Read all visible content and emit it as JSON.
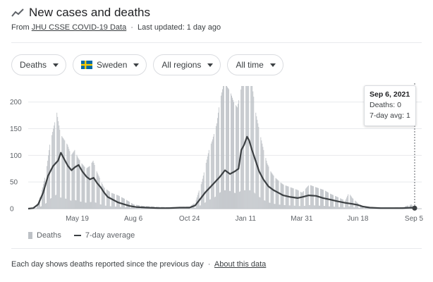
{
  "header": {
    "title": "New cases and deaths",
    "source_prefix": "From",
    "source_link": "JHU CSSE COVID-19 Data",
    "separator": "·",
    "updated": "Last updated: 1 day ago",
    "icon": "trending-icon"
  },
  "controls": {
    "metric": "Deaths",
    "country": "Sweden",
    "regions": "All regions",
    "time": "All time",
    "flag_colors": {
      "blue": "#006AA7",
      "yellow": "#FECC00"
    }
  },
  "chart_data": {
    "type": "bar",
    "x_start": "2020-03-11",
    "x_end": "2021-09-06",
    "ylim": [
      0,
      230
    ],
    "yticks": [
      0,
      50,
      100,
      150,
      200
    ],
    "xtick_labels": [
      "May 19",
      "Aug 6",
      "Oct 24",
      "Jan 11",
      "Mar 31",
      "Jun 18",
      "Sep 5"
    ],
    "xtick_dates": [
      "2020-05-19",
      "2020-08-06",
      "2020-10-24",
      "2021-01-11",
      "2021-03-31",
      "2021-06-18",
      "2021-09-05"
    ],
    "series": [
      {
        "name": "Deaths",
        "kind": "bar",
        "color": "#bdc1c6",
        "points": [
          [
            "2020-03-11",
            0
          ],
          [
            "2020-03-15",
            1
          ],
          [
            "2020-03-20",
            3
          ],
          [
            "2020-03-25",
            12
          ],
          [
            "2020-03-31",
            40
          ],
          [
            "2020-04-05",
            70
          ],
          [
            "2020-04-10",
            120
          ],
          [
            "2020-04-15",
            150
          ],
          [
            "2020-04-20",
            180
          ],
          [
            "2020-04-25",
            140
          ],
          [
            "2020-04-30",
            130
          ],
          [
            "2020-05-05",
            120
          ],
          [
            "2020-05-10",
            100
          ],
          [
            "2020-05-15",
            110
          ],
          [
            "2020-05-20",
            95
          ],
          [
            "2020-05-25",
            85
          ],
          [
            "2020-05-31",
            75
          ],
          [
            "2020-06-05",
            80
          ],
          [
            "2020-06-10",
            90
          ],
          [
            "2020-06-15",
            70
          ],
          [
            "2020-06-20",
            55
          ],
          [
            "2020-06-25",
            40
          ],
          [
            "2020-06-30",
            35
          ],
          [
            "2020-07-05",
            30
          ],
          [
            "2020-07-15",
            25
          ],
          [
            "2020-07-25",
            18
          ],
          [
            "2020-08-06",
            8
          ],
          [
            "2020-08-20",
            5
          ],
          [
            "2020-09-05",
            4
          ],
          [
            "2020-09-20",
            3
          ],
          [
            "2020-10-05",
            3
          ],
          [
            "2020-10-24",
            4
          ],
          [
            "2020-11-01",
            12
          ],
          [
            "2020-11-05",
            30
          ],
          [
            "2020-11-10",
            50
          ],
          [
            "2020-11-15",
            80
          ],
          [
            "2020-11-20",
            110
          ],
          [
            "2020-11-25",
            130
          ],
          [
            "2020-12-01",
            160
          ],
          [
            "2020-12-05",
            200
          ],
          [
            "2020-12-10",
            230
          ],
          [
            "2020-12-15",
            230
          ],
          [
            "2020-12-20",
            220
          ],
          [
            "2020-12-25",
            200
          ],
          [
            "2020-12-30",
            190
          ],
          [
            "2021-01-05",
            230
          ],
          [
            "2021-01-11",
            230
          ],
          [
            "2021-01-15",
            230
          ],
          [
            "2021-01-20",
            230
          ],
          [
            "2021-01-25",
            180
          ],
          [
            "2021-01-31",
            140
          ],
          [
            "2021-02-05",
            110
          ],
          [
            "2021-02-10",
            85
          ],
          [
            "2021-02-15",
            70
          ],
          [
            "2021-02-20",
            60
          ],
          [
            "2021-02-28",
            50
          ],
          [
            "2021-03-05",
            45
          ],
          [
            "2021-03-15",
            40
          ],
          [
            "2021-03-25",
            35
          ],
          [
            "2021-03-31",
            30
          ],
          [
            "2021-04-10",
            45
          ],
          [
            "2021-04-20",
            40
          ],
          [
            "2021-05-01",
            35
          ],
          [
            "2021-05-10",
            28
          ],
          [
            "2021-05-20",
            22
          ],
          [
            "2021-05-31",
            15
          ],
          [
            "2021-06-05",
            30
          ],
          [
            "2021-06-10",
            20
          ],
          [
            "2021-06-18",
            10
          ],
          [
            "2021-06-25",
            5
          ],
          [
            "2021-07-05",
            3
          ],
          [
            "2021-07-20",
            2
          ],
          [
            "2021-08-05",
            2
          ],
          [
            "2021-08-20",
            3
          ],
          [
            "2021-09-01",
            8
          ],
          [
            "2021-09-06",
            0
          ]
        ]
      },
      {
        "name": "7-day average",
        "kind": "line",
        "color": "#3c4043",
        "points": [
          [
            "2020-03-11",
            0
          ],
          [
            "2020-03-18",
            1
          ],
          [
            "2020-03-25",
            8
          ],
          [
            "2020-04-01",
            30
          ],
          [
            "2020-04-08",
            62
          ],
          [
            "2020-04-15",
            80
          ],
          [
            "2020-04-22",
            90
          ],
          [
            "2020-04-26",
            105
          ],
          [
            "2020-05-01",
            92
          ],
          [
            "2020-05-06",
            80
          ],
          [
            "2020-05-11",
            72
          ],
          [
            "2020-05-16",
            78
          ],
          [
            "2020-05-21",
            82
          ],
          [
            "2020-05-26",
            70
          ],
          [
            "2020-06-01",
            60
          ],
          [
            "2020-06-06",
            55
          ],
          [
            "2020-06-11",
            58
          ],
          [
            "2020-06-16",
            48
          ],
          [
            "2020-06-21",
            40
          ],
          [
            "2020-06-26",
            30
          ],
          [
            "2020-07-01",
            22
          ],
          [
            "2020-07-08",
            17
          ],
          [
            "2020-07-15",
            12
          ],
          [
            "2020-07-22",
            9
          ],
          [
            "2020-08-01",
            5
          ],
          [
            "2020-08-10",
            3
          ],
          [
            "2020-08-25",
            2
          ],
          [
            "2020-09-10",
            1
          ],
          [
            "2020-09-25",
            1
          ],
          [
            "2020-10-10",
            2
          ],
          [
            "2020-10-24",
            2
          ],
          [
            "2020-11-01",
            6
          ],
          [
            "2020-11-08",
            18
          ],
          [
            "2020-11-15",
            30
          ],
          [
            "2020-11-22",
            40
          ],
          [
            "2020-11-29",
            50
          ],
          [
            "2020-12-06",
            60
          ],
          [
            "2020-12-13",
            72
          ],
          [
            "2020-12-20",
            65
          ],
          [
            "2020-12-27",
            70
          ],
          [
            "2021-01-01",
            75
          ],
          [
            "2021-01-05",
            110
          ],
          [
            "2021-01-09",
            120
          ],
          [
            "2021-01-13",
            135
          ],
          [
            "2021-01-16",
            128
          ],
          [
            "2021-01-20",
            110
          ],
          [
            "2021-01-25",
            90
          ],
          [
            "2021-01-30",
            70
          ],
          [
            "2021-02-05",
            55
          ],
          [
            "2021-02-12",
            42
          ],
          [
            "2021-02-19",
            35
          ],
          [
            "2021-02-26",
            30
          ],
          [
            "2021-03-05",
            25
          ],
          [
            "2021-03-15",
            22
          ],
          [
            "2021-03-25",
            20
          ],
          [
            "2021-04-01",
            22
          ],
          [
            "2021-04-10",
            25
          ],
          [
            "2021-04-20",
            24
          ],
          [
            "2021-04-30",
            20
          ],
          [
            "2021-05-10",
            17
          ],
          [
            "2021-05-20",
            14
          ],
          [
            "2021-05-31",
            11
          ],
          [
            "2021-06-10",
            9
          ],
          [
            "2021-06-18",
            7
          ],
          [
            "2021-06-25",
            4
          ],
          [
            "2021-07-05",
            2
          ],
          [
            "2021-07-20",
            1
          ],
          [
            "2021-08-05",
            1
          ],
          [
            "2021-08-20",
            1
          ],
          [
            "2021-09-01",
            2
          ],
          [
            "2021-09-06",
            1
          ]
        ]
      }
    ]
  },
  "legend": {
    "deaths": "Deaths",
    "avg": "7-day average"
  },
  "tooltip": {
    "date": "Sep 6, 2021",
    "deaths": "Deaths: 0",
    "avg": "7-day avg: 1"
  },
  "footer": {
    "note": "Each day shows deaths reported since the previous day",
    "separator": "·",
    "link": "About this data"
  }
}
